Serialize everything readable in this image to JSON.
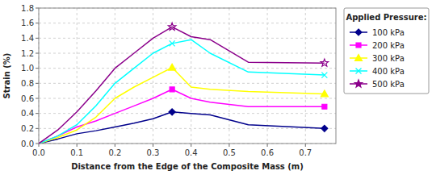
{
  "chart_data": {
    "type": "line",
    "title": "Applied Pressure:",
    "xlabel": "Distance from the Edge of the Composite Mass (m)",
    "ylabel": "Strain (%)",
    "xlim": [
      0.0,
      0.78
    ],
    "ylim": [
      0.0,
      1.8
    ],
    "xticks": [
      {
        "value": 0.0,
        "label": "0.0"
      },
      0.1,
      0.2,
      0.3,
      0.4,
      0.5,
      0.6,
      0.7
    ],
    "yticks": [
      {
        "value": 0.0,
        "label": "0.0"
      },
      0.2,
      0.4,
      0.6,
      0.8,
      {
        "value": 1.0,
        "label": "1.0"
      },
      1.2,
      1.4,
      1.6,
      1.8
    ],
    "grid": true,
    "legend": "right",
    "x": [
      0.0,
      0.05,
      0.1,
      0.15,
      0.2,
      0.25,
      0.3,
      0.35,
      0.4,
      0.45,
      0.55,
      0.75
    ],
    "series": [
      {
        "name": "100 kPa",
        "color": "#00008B",
        "marker": "diamond",
        "values": [
          0.0,
          0.06,
          0.13,
          0.17,
          0.22,
          0.27,
          0.33,
          0.42,
          0.4,
          0.38,
          0.25,
          0.2
        ]
      },
      {
        "name": "200 kPa",
        "color": "#FF00FF",
        "marker": "square",
        "values": [
          0.0,
          0.1,
          0.22,
          0.3,
          0.4,
          0.5,
          0.6,
          0.72,
          0.6,
          0.55,
          0.49,
          0.49
        ]
      },
      {
        "name": "300 kPa",
        "color": "#FFFF00",
        "marker": "triangle",
        "values": [
          0.0,
          0.08,
          0.18,
          0.35,
          0.6,
          0.75,
          0.88,
          1.01,
          0.75,
          0.72,
          0.69,
          0.66
        ]
      },
      {
        "name": "400 kPa",
        "color": "#00FFFF",
        "marker": "x",
        "values": [
          0.0,
          0.1,
          0.25,
          0.5,
          0.8,
          1.0,
          1.2,
          1.33,
          1.38,
          1.2,
          0.95,
          0.91
        ]
      },
      {
        "name": "500 kPa",
        "color": "#8B008B",
        "marker": "star",
        "values": [
          0.0,
          0.18,
          0.42,
          0.7,
          1.0,
          1.2,
          1.4,
          1.55,
          1.42,
          1.38,
          1.08,
          1.07
        ]
      }
    ]
  }
}
